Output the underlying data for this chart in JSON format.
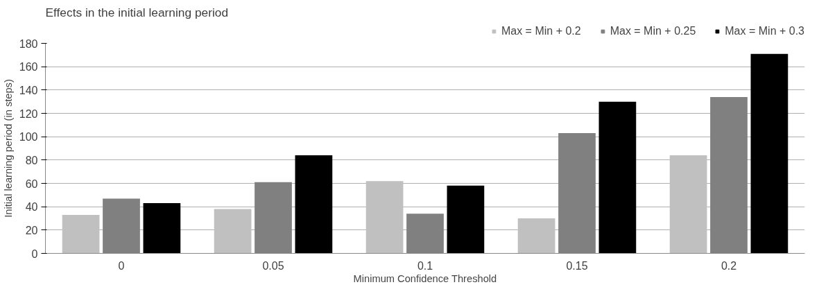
{
  "chart_data": {
    "type": "bar",
    "title": "Effects in the initial learning period",
    "xlabel": "Minimum Confidence Threshold",
    "ylabel": "Initial learning period (in steps)",
    "categories": [
      "0",
      "0.05",
      "0.1",
      "0.15",
      "0.2"
    ],
    "series": [
      {
        "name": "Max = Min + 0.2",
        "color": "#c0c0c0",
        "values": [
          33,
          38,
          62,
          30,
          84
        ]
      },
      {
        "name": "Max = Min + 0.25",
        "color": "#808080",
        "values": [
          47,
          61,
          34,
          103,
          134
        ]
      },
      {
        "name": "Max = Min + 0.3",
        "color": "#000000",
        "values": [
          43,
          84,
          58,
          130,
          171
        ]
      }
    ],
    "ylim": [
      0,
      180
    ],
    "yticks": [
      0,
      20,
      40,
      60,
      80,
      100,
      120,
      140,
      160,
      180
    ],
    "grid": "y",
    "legend": "top right"
  }
}
